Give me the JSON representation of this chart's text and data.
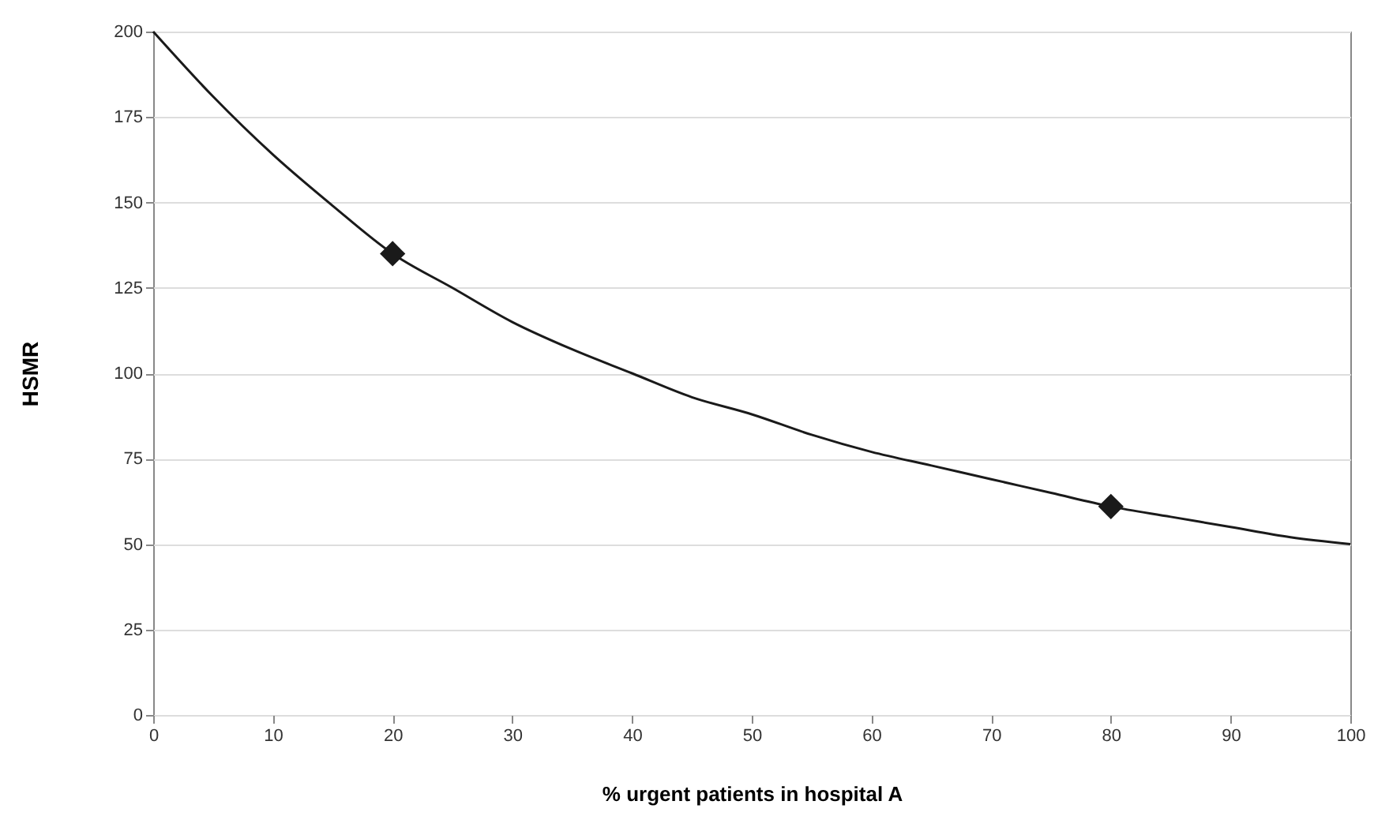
{
  "chart_data": {
    "type": "line",
    "xlabel": "% urgent patients in hospital A",
    "ylabel": "HSMR",
    "xlim": [
      0,
      100
    ],
    "xticks": [
      0,
      10,
      20,
      30,
      40,
      50,
      60,
      70,
      80,
      90,
      100
    ],
    "ylim": [
      0,
      200
    ],
    "yticks": [
      0,
      25,
      50,
      75,
      100,
      125,
      150,
      175,
      200
    ],
    "grid": "y",
    "series": [
      {
        "color": "#1a1a1a",
        "marker": "none",
        "line_style": "solid",
        "x": [
          0,
          5,
          10,
          15,
          20,
          25,
          30,
          35,
          40,
          45,
          50,
          55,
          60,
          65,
          70,
          75,
          80,
          85,
          90,
          95,
          100
        ],
        "values": [
          200,
          181,
          164,
          149,
          135,
          125,
          115,
          107,
          100,
          93,
          88,
          82,
          77,
          73,
          69,
          65,
          61,
          58,
          55,
          52,
          50
        ]
      },
      {
        "type": "scatter",
        "color": "#1a1a1a",
        "marker": "diamond",
        "x": [
          20,
          80
        ],
        "values": [
          135,
          61
        ]
      }
    ]
  }
}
